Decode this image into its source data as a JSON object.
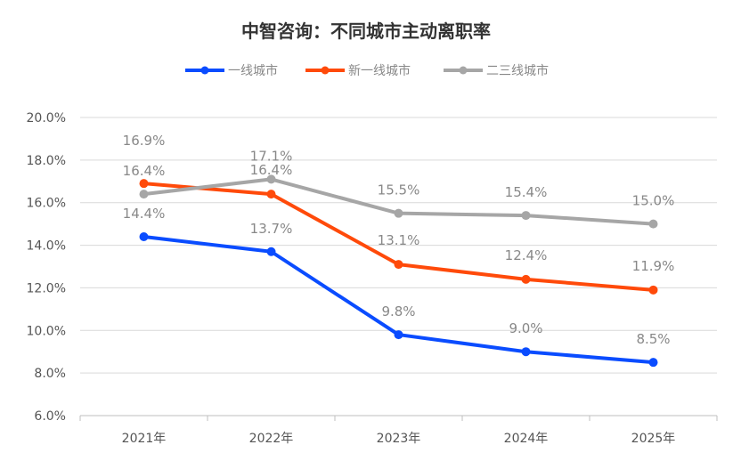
{
  "chart_data": {
    "type": "line",
    "title": "中智咨询：不同城市主动离职率",
    "categories": [
      "2021年",
      "2022年",
      "2023年",
      "2024年",
      "2025年"
    ],
    "ylim": [
      6.0,
      20.0
    ],
    "yticks": [
      "6.0%",
      "8.0%",
      "10.0%",
      "12.0%",
      "14.0%",
      "16.0%",
      "18.0%",
      "20.0%"
    ],
    "grid": true,
    "legend_position": "top-center",
    "xlabel": "",
    "ylabel": "",
    "series": [
      {
        "name": "一线城市",
        "color": "#0a4cff",
        "values": [
          14.4,
          13.7,
          9.8,
          9.0,
          8.5
        ],
        "labels": [
          "14.4%",
          "13.7%",
          "9.8%",
          "9.0%",
          "8.5%"
        ]
      },
      {
        "name": "新一线城市",
        "color": "#ff4a0a",
        "values": [
          16.9,
          16.4,
          13.1,
          12.4,
          11.9
        ],
        "labels": [
          "16.9%",
          "16.4%",
          "13.1%",
          "12.4%",
          "11.9%"
        ]
      },
      {
        "name": "二三线城市",
        "color": "#a6a6a6",
        "values": [
          16.4,
          17.1,
          15.5,
          15.4,
          15.0
        ],
        "labels": [
          "16.4%",
          "17.1%",
          "15.5%",
          "15.4%",
          "15.0%"
        ]
      }
    ]
  }
}
